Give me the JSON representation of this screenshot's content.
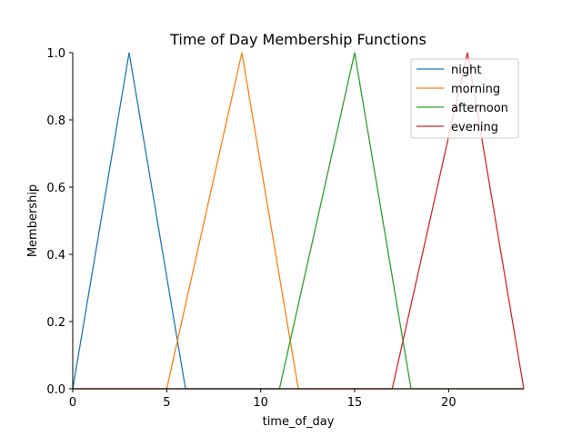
{
  "chart_data": {
    "type": "line",
    "title": "Time of Day Membership Functions",
    "xlabel": "time_of_day",
    "ylabel": "Membership",
    "xlim": [
      0,
      24
    ],
    "ylim": [
      0,
      1.0
    ],
    "xticks": [
      0,
      5,
      10,
      15,
      20
    ],
    "yticks": [
      0.0,
      0.2,
      0.4,
      0.6,
      0.8,
      1.0
    ],
    "xtick_labels": [
      "0",
      "5",
      "10",
      "15",
      "20"
    ],
    "ytick_labels": [
      "0.0",
      "0.2",
      "0.4",
      "0.6",
      "0.8",
      "1.0"
    ],
    "grid": false,
    "legend_position": "top-right",
    "series": [
      {
        "name": "night",
        "color": "#1f77b4",
        "x": [
          0,
          3,
          6,
          24
        ],
        "y": [
          0,
          1,
          0,
          0
        ]
      },
      {
        "name": "morning",
        "color": "#ff7f0e",
        "x": [
          0,
          5,
          9,
          12,
          24
        ],
        "y": [
          0,
          0,
          1,
          0,
          0
        ]
      },
      {
        "name": "afternoon",
        "color": "#2ca02c",
        "x": [
          0,
          11,
          15,
          18,
          24
        ],
        "y": [
          0,
          0,
          1,
          0,
          0
        ]
      },
      {
        "name": "evening",
        "color": "#d62728",
        "x": [
          0,
          17,
          21,
          24
        ],
        "y": [
          0,
          0,
          1,
          0
        ]
      }
    ]
  }
}
